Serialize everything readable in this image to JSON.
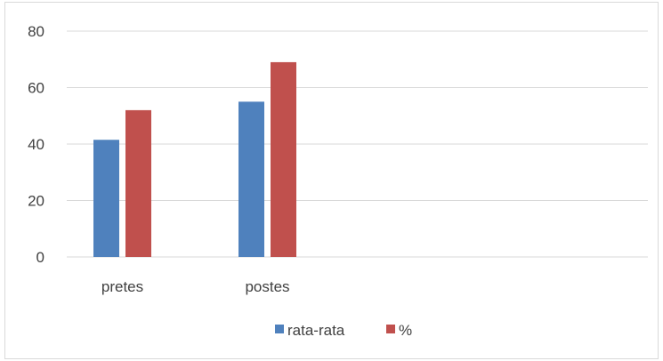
{
  "chart_data": {
    "type": "bar",
    "categories": [
      "pretes",
      "postes"
    ],
    "series": [
      {
        "name": "rata-rata",
        "values": [
          41.5,
          55
        ],
        "color": "#4f81bd"
      },
      {
        "name": "%",
        "values": [
          52,
          69
        ],
        "color": "#c0504d"
      }
    ],
    "yticks": [
      "0",
      "20",
      "40",
      "60",
      "80"
    ],
    "ylim": [
      0,
      80
    ],
    "grid": true,
    "legend_position": "bottom"
  }
}
